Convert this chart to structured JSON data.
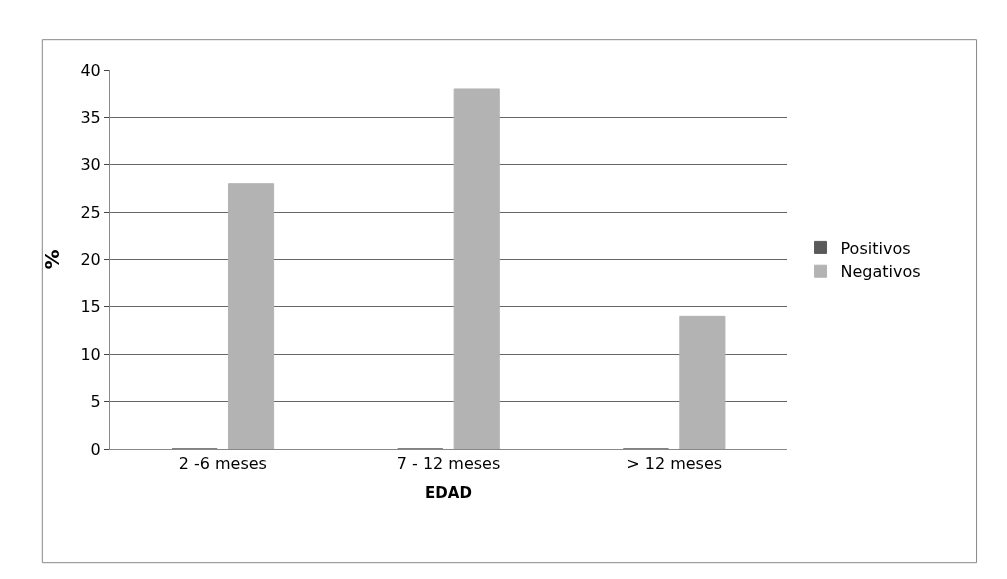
{
  "chart_data": {
    "type": "bar",
    "xlabel": "EDAD",
    "ylabel": "%",
    "categories": [
      "2 -6 meses",
      "7 - 12 meses",
      "> 12 meses"
    ],
    "series": [
      {
        "name": "Positivos",
        "color": "#595959",
        "values": [
          0,
          0,
          0
        ]
      },
      {
        "name": "Negativos",
        "color": "#b3b3b3",
        "values": [
          28,
          38,
          14
        ]
      }
    ],
    "ylim": [
      0,
      40
    ],
    "yticks": [
      0,
      5,
      10,
      15,
      20,
      25,
      30,
      35,
      40
    ],
    "grid": "y",
    "legend": "right"
  }
}
